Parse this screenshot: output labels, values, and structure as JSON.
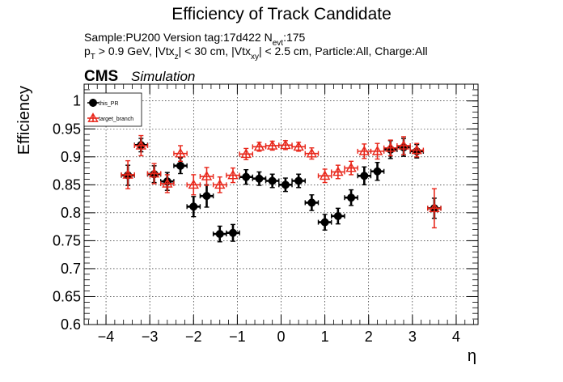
{
  "header": {
    "title": "Efficiency of Track Candidate",
    "sample_line": "Sample:PU200   Version tag:17d422  N",
    "sample_sub": "evt",
    "sample_tail": ":175",
    "cut_line": "p",
    "cut_sub_t": "T",
    "cut_mid1": " > 0.9 GeV, |Vtx",
    "cut_sub_z": "z",
    "cut_mid2": "| < 30 cm, |Vtx",
    "cut_sub_xy": "xy",
    "cut_tail": "| < 2.5 cm, Particle:All, Charge:All",
    "cms": "CMS",
    "simulation": "Simulation"
  },
  "colors": {
    "this_PR": "#000000",
    "target_branch": "#e8261a",
    "grid": "#000000",
    "frame": "#000000"
  },
  "chart_data": {
    "type": "scatter",
    "title": "Efficiency of Track Candidate",
    "xlabel": "η",
    "ylabel": "Efficiency",
    "xlim": [
      -4.5,
      4.5
    ],
    "ylim": [
      0.6,
      1.03
    ],
    "xticks": [
      -4,
      -3,
      -2,
      -1,
      0,
      1,
      2,
      3,
      4
    ],
    "xtick_labels": [
      "−4",
      "−3",
      "−2",
      "−1",
      "0",
      "1",
      "2",
      "3",
      "4"
    ],
    "yticks": [
      0.6,
      0.65,
      0.7,
      0.75,
      0.8,
      0.85,
      0.9,
      0.95,
      1.0
    ],
    "ytick_labels": [
      "0.6",
      "0.65",
      "0.7",
      "0.75",
      "0.8",
      "0.85",
      "0.9",
      "0.95",
      "1"
    ],
    "grid": true,
    "legend_position": "top-left",
    "series": [
      {
        "name": "this_PR",
        "marker": "filled-circle",
        "x": [
          -3.5,
          -3.2,
          -2.9,
          -2.6,
          -2.3,
          -2.0,
          -1.7,
          -1.4,
          -1.1,
          -0.8,
          -0.5,
          -0.2,
          0.1,
          0.4,
          0.7,
          1.0,
          1.3,
          1.6,
          1.9,
          2.2,
          2.5,
          2.8,
          3.1,
          3.5
        ],
        "xerr": [
          0.15,
          0.15,
          0.15,
          0.15,
          0.15,
          0.15,
          0.15,
          0.15,
          0.15,
          0.15,
          0.15,
          0.15,
          0.15,
          0.15,
          0.15,
          0.15,
          0.15,
          0.15,
          0.15,
          0.15,
          0.15,
          0.15,
          0.15,
          0.15
        ],
        "y": [
          0.867,
          0.921,
          0.869,
          0.856,
          0.884,
          0.811,
          0.83,
          0.762,
          0.764,
          0.864,
          0.861,
          0.857,
          0.85,
          0.857,
          0.818,
          0.783,
          0.794,
          0.827,
          0.866,
          0.874,
          0.913,
          0.917,
          0.91,
          0.808
        ],
        "yerr": [
          0.018,
          0.012,
          0.015,
          0.016,
          0.014,
          0.018,
          0.02,
          0.014,
          0.015,
          0.013,
          0.012,
          0.012,
          0.012,
          0.012,
          0.014,
          0.014,
          0.014,
          0.014,
          0.016,
          0.016,
          0.016,
          0.016,
          0.012,
          0.018
        ]
      },
      {
        "name": "target_branch",
        "marker": "open-triangle",
        "x": [
          -3.5,
          -3.2,
          -2.9,
          -2.6,
          -2.3,
          -2.0,
          -1.7,
          -1.4,
          -1.1,
          -0.8,
          -0.5,
          -0.2,
          0.1,
          0.4,
          0.7,
          1.0,
          1.3,
          1.6,
          1.9,
          2.2,
          2.5,
          2.8,
          3.1,
          3.5
        ],
        "xerr": [
          0.15,
          0.15,
          0.15,
          0.15,
          0.15,
          0.15,
          0.15,
          0.15,
          0.15,
          0.15,
          0.15,
          0.15,
          0.15,
          0.15,
          0.15,
          0.15,
          0.15,
          0.15,
          0.15,
          0.15,
          0.15,
          0.15,
          0.15,
          0.15
        ],
        "y": [
          0.868,
          0.92,
          0.87,
          0.852,
          0.906,
          0.85,
          0.865,
          0.85,
          0.867,
          0.905,
          0.918,
          0.92,
          0.921,
          0.918,
          0.906,
          0.866,
          0.873,
          0.88,
          0.91,
          0.91,
          0.916,
          0.92,
          0.912,
          0.808
        ],
        "yerr": [
          0.025,
          0.018,
          0.018,
          0.016,
          0.014,
          0.018,
          0.016,
          0.014,
          0.013,
          0.01,
          0.008,
          0.008,
          0.008,
          0.008,
          0.01,
          0.012,
          0.012,
          0.012,
          0.013,
          0.014,
          0.014,
          0.016,
          0.012,
          0.035
        ]
      }
    ]
  }
}
